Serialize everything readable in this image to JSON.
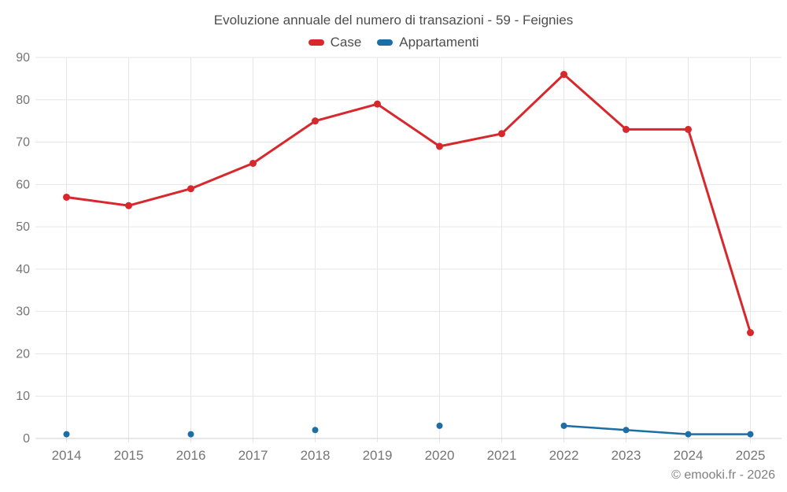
{
  "page": {
    "title": "Evoluzione annuale del numero di transazioni - 59 - Feignies",
    "footer": "© emooki.fr - 2026"
  },
  "legend": [
    {
      "label": "Case",
      "color": "#d7282d"
    },
    {
      "label": "Appartamenti",
      "color": "#1c6ea4"
    }
  ],
  "chart_data": {
    "type": "line",
    "title": "Evoluzione annuale del numero di transazioni - 59 - Feignies",
    "categories": [
      "2014",
      "2015",
      "2016",
      "2017",
      "2018",
      "2019",
      "2020",
      "2021",
      "2022",
      "2023",
      "2024",
      "2025"
    ],
    "series": [
      {
        "name": "Case",
        "color": "#d7282d",
        "values": [
          57,
          55,
          59,
          65,
          75,
          79,
          69,
          72,
          86,
          73,
          73,
          25
        ]
      },
      {
        "name": "Appartamenti",
        "color": "#1c6ea4",
        "values": [
          1,
          null,
          1,
          null,
          2,
          null,
          3,
          null,
          3,
          2,
          1,
          1
        ]
      }
    ],
    "xlabel": "",
    "ylabel": "",
    "ylim": [
      0,
      90
    ],
    "ytick_step": 10,
    "grid": true,
    "legend_position": "top",
    "colors": {
      "grid": "#e6e6e6",
      "axis_line": "#cfcfcf",
      "tick_label": "#757575",
      "title_text": "#4d4d4d",
      "footer_text": "#808080",
      "background": "#ffffff"
    }
  }
}
